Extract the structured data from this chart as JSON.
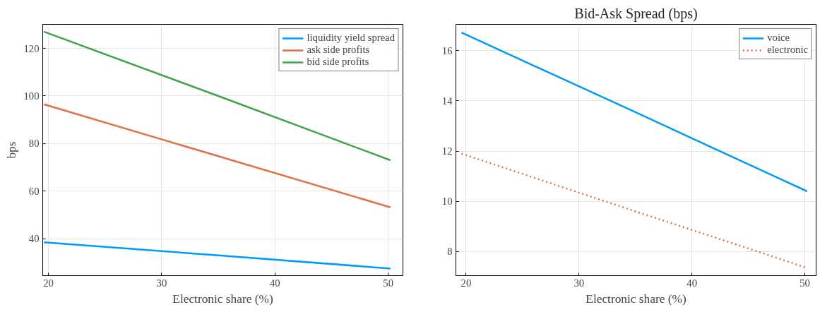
{
  "chart_data": [
    {
      "type": "line",
      "xlabel": "Electronic share (%)",
      "ylabel": "bps",
      "x": [
        19.6,
        35,
        50.2
      ],
      "xlim": [
        19.5,
        51.3
      ],
      "ylim": [
        24.5,
        130.1
      ],
      "xticks": [
        20,
        30,
        40,
        50
      ],
      "yticks": [
        40,
        60,
        80,
        100,
        120
      ],
      "grid": true,
      "legend": "top right",
      "line_style": "solid",
      "series": [
        {
          "name": "liquidity yield spread",
          "color": "#009af9",
          "values": [
            38.5,
            33,
            27.5
          ]
        },
        {
          "name": "ask side profits",
          "color": "#e26f46",
          "values": [
            96.5,
            74.7,
            53.2
          ]
        },
        {
          "name": "bid side profits",
          "color": "#3da44d",
          "values": [
            127,
            100,
            73
          ]
        }
      ]
    },
    {
      "type": "line",
      "title": "Bid-Ask Spread (bps)",
      "xlabel": "Electronic share (%)",
      "x": [
        19.6,
        35,
        50.2
      ],
      "xlim": [
        19.1,
        51.0
      ],
      "ylim": [
        7.04,
        17.05
      ],
      "xticks": [
        20,
        30,
        40,
        50
      ],
      "yticks": [
        8,
        10,
        12,
        14,
        16
      ],
      "grid": true,
      "legend": "top right",
      "series": [
        {
          "name": "voice",
          "color": "#009af9",
          "values": [
            16.72,
            13.55,
            10.4
          ],
          "line_style": "solid"
        },
        {
          "name": "electronic",
          "color": "#e26f46",
          "values": [
            11.9,
            9.6,
            7.35
          ],
          "line_style": "dotted"
        }
      ]
    }
  ]
}
